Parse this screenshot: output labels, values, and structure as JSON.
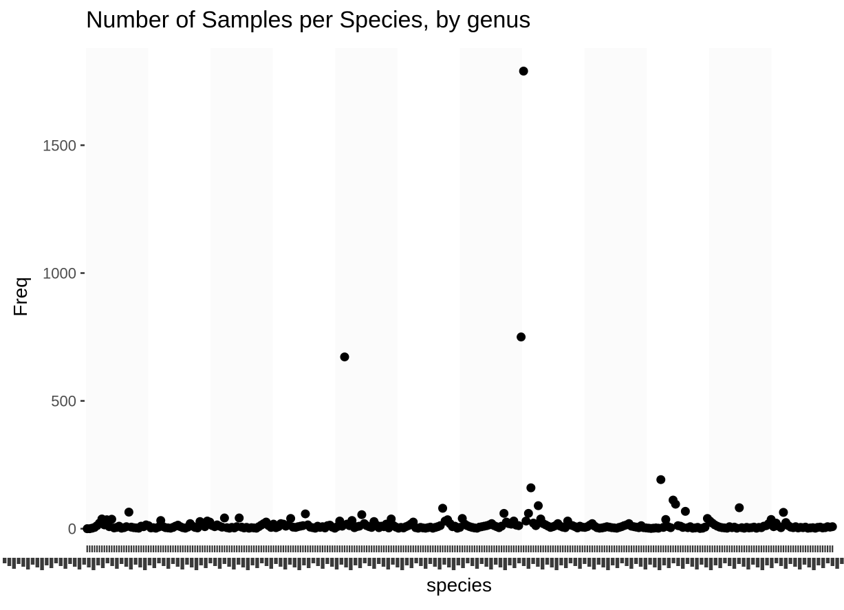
{
  "chart_data": {
    "type": "scatter",
    "title": "Number of Samples per Species, by genus",
    "xlabel": "species",
    "ylabel": "Freq",
    "ylim": [
      -60,
      1880
    ],
    "y_ticks": [
      0,
      500,
      1000,
      1500
    ],
    "grid": false,
    "legend": "none",
    "point_color": "#000000",
    "x_tick_labels_note": "x tick labels overprinted and illegible",
    "values": [
      0,
      0,
      2,
      5,
      12,
      22,
      38,
      15,
      35,
      8,
      37,
      3,
      5,
      10,
      2,
      4,
      8,
      65,
      6,
      4,
      3,
      2,
      10,
      8,
      15,
      12,
      3,
      4,
      2,
      6,
      32,
      8,
      4,
      3,
      2,
      5,
      10,
      14,
      8,
      4,
      2,
      6,
      20,
      10,
      5,
      3,
      28,
      14,
      8,
      30,
      26,
      12,
      8,
      15,
      10,
      6,
      42,
      4,
      2,
      5,
      3,
      8,
      42,
      6,
      3,
      5,
      2,
      4,
      3,
      2,
      8,
      14,
      20,
      26,
      12,
      5,
      18,
      4,
      8,
      20,
      18,
      10,
      14,
      40,
      6,
      5,
      8,
      10,
      12,
      58,
      15,
      6,
      4,
      2,
      10,
      5,
      8,
      3,
      12,
      14,
      6,
      2,
      8,
      30,
      10,
      672,
      18,
      12,
      32,
      4,
      8,
      10,
      55,
      20,
      12,
      8,
      5,
      28,
      14,
      4,
      10,
      8,
      18,
      3,
      38,
      12,
      6,
      2,
      5,
      3,
      8,
      12,
      18,
      26,
      4,
      2,
      5,
      3,
      2,
      4,
      6,
      2,
      5,
      8,
      12,
      80,
      30,
      35,
      20,
      8,
      10,
      2,
      5,
      40,
      18,
      12,
      8,
      5,
      3,
      2,
      6,
      8,
      10,
      12,
      15,
      20,
      12,
      8,
      4,
      10,
      60,
      26,
      20,
      18,
      30,
      14,
      12,
      750,
      1790,
      30,
      60,
      160,
      22,
      12,
      90,
      38,
      20,
      15,
      10,
      5,
      8,
      12,
      20,
      10,
      6,
      4,
      30,
      15,
      12,
      8,
      3,
      10,
      6,
      5,
      8,
      14,
      20,
      10,
      4,
      2,
      3,
      5,
      8,
      6,
      4,
      3,
      2,
      5,
      8,
      12,
      15,
      20,
      10,
      8,
      6,
      4,
      12,
      4,
      3,
      2,
      1,
      2,
      3,
      2,
      192,
      5,
      36,
      8,
      4,
      112,
      96,
      12,
      10,
      5,
      68,
      4,
      8,
      2,
      3,
      5,
      1,
      2,
      6,
      40,
      30,
      22,
      15,
      10,
      6,
      4,
      3,
      2,
      8,
      4,
      6,
      2,
      82,
      4,
      2,
      5,
      3,
      4,
      6,
      2,
      5,
      4,
      10,
      12,
      20,
      36,
      8,
      22,
      10,
      4,
      64,
      24,
      12,
      6,
      4,
      8,
      3,
      5,
      4,
      6,
      2,
      3,
      4,
      2,
      5,
      6,
      3,
      4,
      8,
      6,
      8
    ]
  }
}
